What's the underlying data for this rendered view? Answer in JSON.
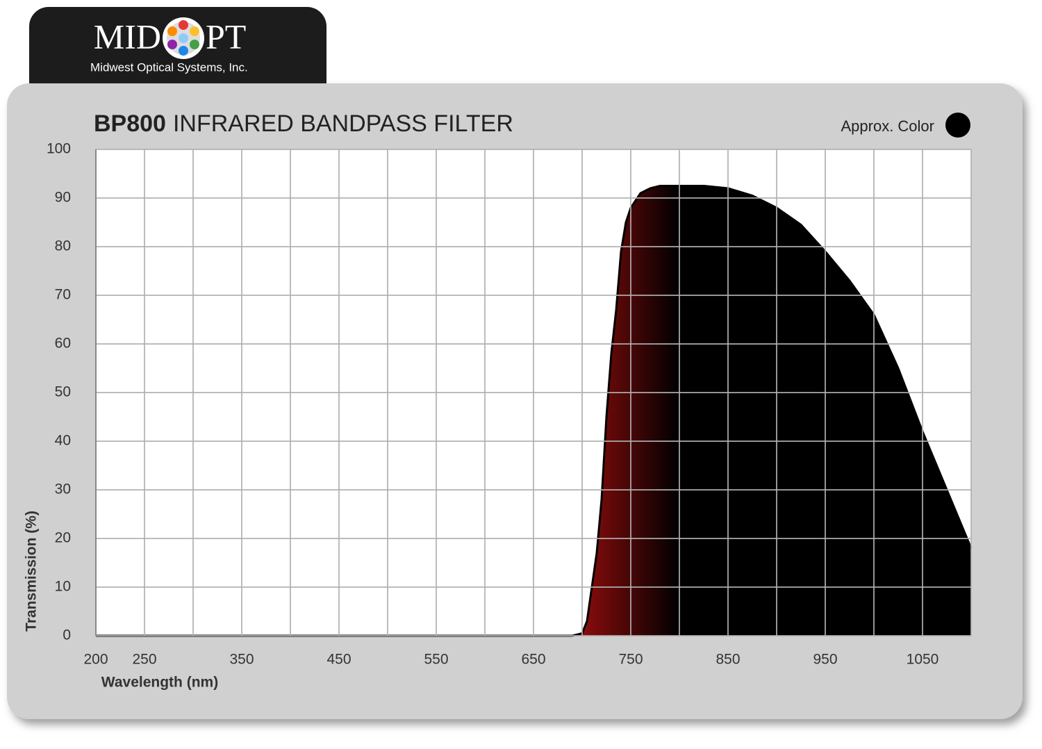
{
  "logo": {
    "left": "MID",
    "right": "PT",
    "subtitle": "Midwest Optical Systems, Inc."
  },
  "chart_data": {
    "type": "area",
    "title_bold": "BP800",
    "title": "INFRARED BANDPASS FILTER",
    "legend_label": "Approx. Color",
    "legend_color": "#000000",
    "xlabel": "Wavelength (nm)",
    "ylabel": "Transmission (%)",
    "x": [
      200,
      300,
      400,
      500,
      600,
      650,
      690,
      700,
      705,
      710,
      715,
      720,
      725,
      730,
      735,
      740,
      745,
      750,
      760,
      770,
      780,
      800,
      825,
      850,
      875,
      900,
      925,
      950,
      975,
      1000,
      1025,
      1050,
      1075,
      1100
    ],
    "series": [
      {
        "color": "#000000",
        "edge_color": "#8a0c0c",
        "values": [
          0,
          0,
          0,
          0,
          0,
          0,
          0,
          0.5,
          3,
          10,
          17,
          28,
          45,
          58,
          67,
          79,
          85,
          88,
          91,
          92,
          92.5,
          92.5,
          92.5,
          92,
          90.5,
          88,
          84.5,
          79,
          73,
          66,
          55,
          42,
          30,
          18
        ]
      }
    ],
    "xlim": [
      200,
      1100
    ],
    "ylim": [
      0,
      100
    ],
    "xticks": [
      200,
      250,
      350,
      450,
      550,
      650,
      750,
      850,
      950,
      1050
    ],
    "xgrid": [
      250,
      300,
      350,
      400,
      450,
      500,
      550,
      600,
      650,
      700,
      750,
      800,
      850,
      900,
      950,
      1000,
      1050,
      1100
    ],
    "yticks": [
      0,
      10,
      20,
      30,
      40,
      50,
      60,
      70,
      80,
      90,
      100
    ],
    "grid": true
  }
}
